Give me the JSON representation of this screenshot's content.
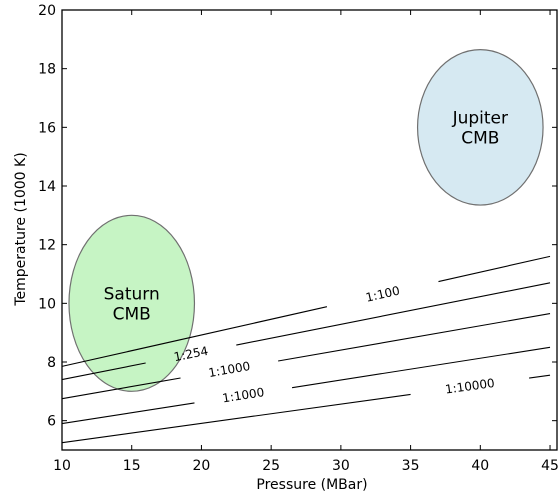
{
  "chart_data": {
    "type": "line",
    "xlabel": "Pressure (MBar)",
    "ylabel": "Temperature (1000 K)",
    "xlim": [
      10,
      45.5
    ],
    "ylim": [
      5,
      20
    ],
    "xticks": [
      10,
      15,
      20,
      25,
      30,
      35,
      40,
      45
    ],
    "yticks": [
      6,
      8,
      10,
      12,
      14,
      16,
      18,
      20
    ],
    "grid": false,
    "regions": [
      {
        "label_lines": [
          "Saturn",
          "CMB"
        ],
        "cx": 15,
        "cy": 10,
        "rx": 4.5,
        "ry": 3,
        "color": "#c6f4c4"
      },
      {
        "label_lines": [
          "Jupiter",
          "CMB"
        ],
        "cx": 40,
        "cy": 16,
        "rx": 4.5,
        "ry": 2.65,
        "color": "#d6e9f2"
      }
    ],
    "series": [
      {
        "label": "1:100",
        "x": [
          10,
          45
        ],
        "y": [
          7.85,
          11.6
        ],
        "gap_x": [
          29,
          37
        ]
      },
      {
        "label": "1:254",
        "x": [
          10,
          45
        ],
        "y": [
          7.4,
          10.7
        ],
        "gap_x": [
          16,
          22.5
        ]
      },
      {
        "label": "1:1000",
        "x": [
          10,
          45
        ],
        "y": [
          6.75,
          9.65
        ],
        "gap_x": [
          18.5,
          25.5
        ]
      },
      {
        "label": "1:1000",
        "x": [
          10,
          45
        ],
        "y": [
          5.9,
          8.5
        ],
        "gap_x": [
          19.5,
          26.5
        ]
      },
      {
        "label": "1:10000",
        "x": [
          10,
          45
        ],
        "y": [
          5.25,
          7.55
        ],
        "gap_x": [
          35,
          43.5
        ]
      }
    ]
  }
}
